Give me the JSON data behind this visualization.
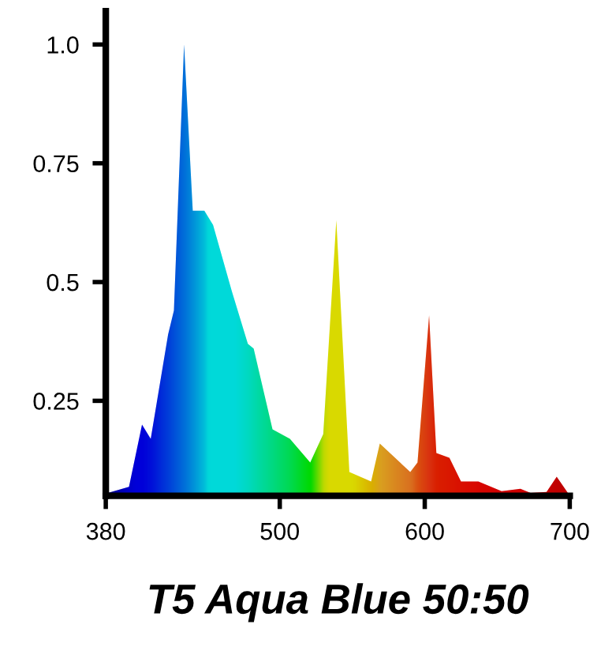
{
  "chart_data": {
    "type": "area",
    "title": "T5 Aqua Blue 50:50",
    "x": [
      380,
      396,
      405,
      411,
      423,
      427,
      434,
      440,
      448,
      454,
      467,
      478,
      482,
      495,
      507,
      521,
      530,
      539,
      548,
      563,
      569,
      590,
      595,
      603,
      608,
      617,
      625,
      637,
      653,
      666,
      673,
      684,
      691,
      699
    ],
    "values": [
      0.055,
      0.069,
      0.2,
      0.17,
      0.39,
      0.44,
      1.0,
      0.65,
      0.65,
      0.62,
      0.48,
      0.37,
      0.36,
      0.19,
      0.17,
      0.12,
      0.18,
      0.63,
      0.1,
      0.08,
      0.16,
      0.1,
      0.12,
      0.43,
      0.14,
      0.13,
      0.08,
      0.08,
      0.06,
      0.065,
      0.056,
      0.058,
      0.09,
      0.055
    ],
    "colors": [
      "#00008b",
      "#0000cc",
      "#0000e6",
      "#0010f0",
      "#0040ff",
      "#0050ff",
      "#0070ff",
      "#0090ff",
      "#00c0ff",
      "#00ffff",
      "#00ffe0",
      "#00ffc0",
      "#00ffb0",
      "#00ff80",
      "#00f050",
      "#00e000",
      "#c0ff00",
      "#ffff00",
      "#ffe000",
      "#ffb000",
      "#f0a020",
      "#f07020",
      "#f05010",
      "#e03010",
      "#e02000",
      "#e01800",
      "#e01000",
      "#d80800",
      "#d00000",
      "#d00000",
      "#c80000",
      "#c80000",
      "#c00000",
      "#c00000"
    ],
    "xlim": [
      380,
      700
    ],
    "xticks": [
      380,
      500,
      600,
      700
    ],
    "ylim": [
      0.05,
      1.07
    ],
    "yticks": [
      0.25,
      0.5,
      0.75,
      {
        "value": 1,
        "label": "1.0"
      }
    ],
    "grid": false
  }
}
